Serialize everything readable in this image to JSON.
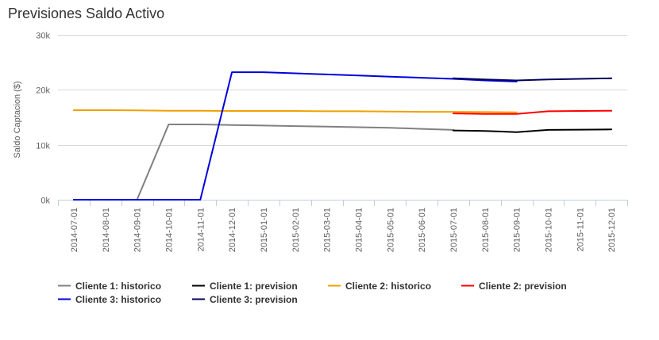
{
  "chart_data": {
    "type": "line",
    "title": "Previsiones Saldo Activo",
    "ylabel": "Saldo Captacion ($)",
    "xlabel": "",
    "ylim": [
      0,
      30000
    ],
    "yticks": [
      {
        "value": 0,
        "label": "0k"
      },
      {
        "value": 10000,
        "label": "10k"
      },
      {
        "value": 20000,
        "label": "20k"
      },
      {
        "value": 30000,
        "label": "30k"
      }
    ],
    "grid": true,
    "legend_position": "bottom-left",
    "categories": [
      "2014-07-01",
      "2014-08-01",
      "2014-09-01",
      "2014-10-01",
      "2014-11-01",
      "2014-12-01",
      "2015-01-01",
      "2015-02-01",
      "2015-03-01",
      "2015-04-01",
      "2015-05-01",
      "2015-06-01",
      "2015-07-01",
      "2015-08-01",
      "2015-09-01",
      "2015-10-01",
      "2015-11-01",
      "2015-12-01"
    ],
    "series": [
      {
        "name": "Cliente 1: historico",
        "color": "#808080",
        "values": [
          0,
          0,
          0,
          13700,
          13700,
          13600,
          13500,
          13400,
          13300,
          13200,
          13100,
          12900,
          12700,
          null,
          null,
          null,
          null,
          null
        ]
      },
      {
        "name": "Cliente 1: prevision",
        "color": "#000000",
        "values": [
          null,
          null,
          null,
          null,
          null,
          null,
          null,
          null,
          null,
          null,
          null,
          null,
          12600,
          12500,
          12300,
          12700,
          12750,
          12800
        ]
      },
      {
        "name": "Cliente 2: historico",
        "color": "#f0a000",
        "values": [
          16300,
          16300,
          16250,
          16200,
          16200,
          16150,
          16150,
          16150,
          16100,
          16100,
          16050,
          16000,
          16000,
          15950,
          15900,
          null,
          null,
          null
        ]
      },
      {
        "name": "Cliente 2: prevision",
        "color": "#ff0000",
        "values": [
          null,
          null,
          null,
          null,
          null,
          null,
          null,
          null,
          null,
          null,
          null,
          null,
          15700,
          15600,
          15600,
          16100,
          16150,
          16200
        ]
      },
      {
        "name": "Cliente 3: historico",
        "color": "#0000dd",
        "values": [
          0,
          0,
          0,
          0,
          0,
          23200,
          23200,
          23000,
          22800,
          22600,
          22400,
          22200,
          22000,
          21700,
          21500,
          null,
          null,
          null
        ]
      },
      {
        "name": "Cliente 3: prevision",
        "color": "#00005a",
        "values": [
          null,
          null,
          null,
          null,
          null,
          null,
          null,
          null,
          null,
          null,
          null,
          null,
          22100,
          21900,
          21700,
          21900,
          22000,
          22100
        ]
      }
    ]
  }
}
